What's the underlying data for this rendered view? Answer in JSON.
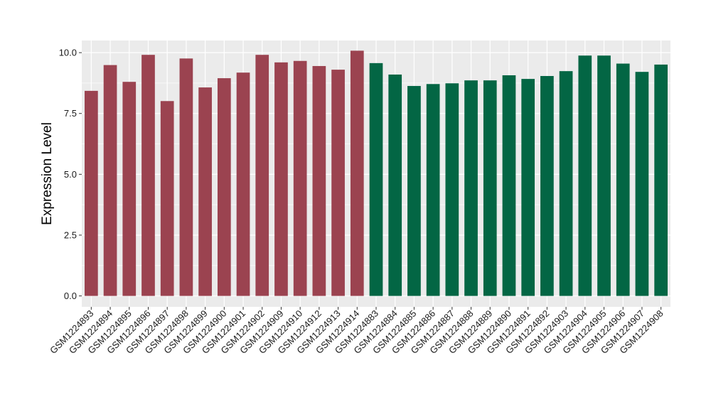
{
  "chart_data": {
    "type": "bar",
    "title": "",
    "xlabel": "",
    "ylabel": "Expression Level",
    "ylim": [
      -0.45,
      10.5
    ],
    "yticks": [
      0.0,
      2.5,
      5.0,
      7.5,
      10.0
    ],
    "ytick_labels": [
      "0.0",
      "2.5",
      "5.0",
      "7.5",
      "10.0"
    ],
    "grid": true,
    "legend": "none",
    "colors": {
      "group_1": "#9b4350",
      "group_2": "#036644",
      "panel_bg": "#ebebeb",
      "grid": "#ffffff"
    },
    "categories": [
      "GSM1224893",
      "GSM1224894",
      "GSM1224895",
      "GSM1224896",
      "GSM1224897",
      "GSM1224898",
      "GSM1224899",
      "GSM1224900",
      "GSM1224901",
      "GSM1224902",
      "GSM1224909",
      "GSM1224910",
      "GSM1224912",
      "GSM1224913",
      "GSM1224914",
      "GSM1224883",
      "GSM1224884",
      "GSM1224885",
      "GSM1224886",
      "GSM1224887",
      "GSM1224888",
      "GSM1224889",
      "GSM1224890",
      "GSM1224891",
      "GSM1224892",
      "GSM1224903",
      "GSM1224904",
      "GSM1224905",
      "GSM1224906",
      "GSM1224907",
      "GSM1224908"
    ],
    "values": [
      8.43,
      9.49,
      8.8,
      9.91,
      8.01,
      9.76,
      8.57,
      8.95,
      9.18,
      9.91,
      9.6,
      9.66,
      9.45,
      9.3,
      10.08,
      9.57,
      9.1,
      8.63,
      8.71,
      8.74,
      8.86,
      8.86,
      9.07,
      8.92,
      9.04,
      9.24,
      9.88,
      9.88,
      9.55,
      9.21,
      9.51
    ],
    "groups": [
      1,
      1,
      1,
      1,
      1,
      1,
      1,
      1,
      1,
      1,
      1,
      1,
      1,
      1,
      1,
      2,
      2,
      2,
      2,
      2,
      2,
      2,
      2,
      2,
      2,
      2,
      2,
      2,
      2,
      2,
      2
    ]
  }
}
